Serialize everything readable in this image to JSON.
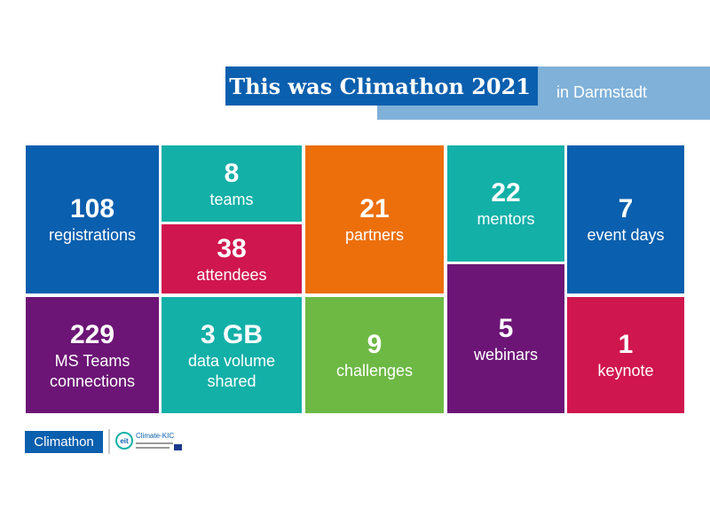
{
  "header": {
    "title": "This was Climathon 2021",
    "subtitle": "in Darmstadt"
  },
  "tiles": [
    {
      "number": "108",
      "label": "registrations"
    },
    {
      "number": "8",
      "label": "teams"
    },
    {
      "number": "38",
      "label": "attendees"
    },
    {
      "number": "21",
      "label": "partners"
    },
    {
      "number": "22",
      "label": "mentors"
    },
    {
      "number": "7",
      "label": "event days"
    },
    {
      "number": "229",
      "label": "MS Teams connections"
    },
    {
      "number": "3 GB",
      "label": "data volume shared"
    },
    {
      "number": "9",
      "label": "challenges"
    },
    {
      "number": "5",
      "label": "webinars"
    },
    {
      "number": "1",
      "label": "keynote"
    }
  ],
  "footer": {
    "climathon_logo": "Climathon",
    "kic_logo_mark": "eit",
    "kic_logo_name": "Climate-KIC"
  },
  "colors": {
    "blue": "#0a5fae",
    "light_blue": "#7fb1d9",
    "teal": "#13b0a8",
    "orange": "#ec6f0b",
    "crimson": "#d0164e",
    "purple": "#6c1576",
    "green": "#6db944"
  }
}
